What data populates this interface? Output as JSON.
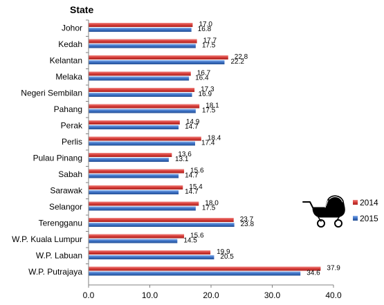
{
  "chart_data": {
    "type": "bar",
    "orientation": "horizontal",
    "title": "State",
    "xlabel": "",
    "ylabel": "",
    "xlim": [
      0,
      40
    ],
    "xticks": [
      "0.0",
      "10.0",
      "20.0",
      "30.0",
      "40.0"
    ],
    "grid": false,
    "legend_position": "right",
    "categories": [
      "Johor",
      "Kedah",
      "Kelantan",
      "Melaka",
      "Negeri Sembilan",
      "Pahang",
      "Perak",
      "Perlis",
      "Pulau Pinang",
      "Sabah",
      "Sarawak",
      "Selangor",
      "Terengganu",
      "W.P. Kuala Lumpur",
      "W.P. Labuan",
      "W.P. Putrajaya"
    ],
    "series": [
      {
        "name": "2014",
        "color": "#d9403c",
        "values": [
          17.0,
          17.7,
          22.8,
          16.7,
          17.3,
          18.1,
          14.9,
          18.4,
          13.6,
          15.6,
          15.4,
          18.0,
          23.7,
          15.6,
          19.9,
          37.9
        ]
      },
      {
        "name": "2015",
        "color": "#3f74c8",
        "values": [
          16.8,
          17.5,
          22.2,
          16.4,
          16.9,
          17.5,
          14.7,
          17.4,
          13.1,
          14.7,
          14.7,
          17.5,
          23.8,
          14.5,
          20.5,
          34.6
        ]
      }
    ]
  },
  "decoration": {
    "icon": "baby-pram-icon"
  }
}
